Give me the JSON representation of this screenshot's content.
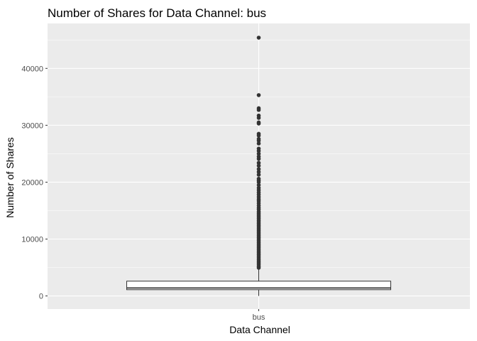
{
  "chart_data": {
    "type": "boxplot",
    "title": "Number of Shares for Data Channel: bus",
    "xlabel": "Data Channel",
    "ylabel": "Number of Shares",
    "categories": [
      "bus"
    ],
    "ylim": [
      -2300,
      47900
    ],
    "yticks": [
      0,
      10000,
      20000,
      30000,
      40000
    ],
    "ytick_labels": [
      "0",
      "10000",
      "20000",
      "30000",
      "40000"
    ],
    "grid": true,
    "background": "#ebebeb",
    "grid_color": "#ffffff",
    "point_color": "#333333",
    "box": {
      "category": "bus",
      "min": 0,
      "q1": 1100,
      "median": 1400,
      "q3": 2600,
      "whisker_high": 4850
    },
    "outliers": [
      45400,
      35300,
      33000,
      32700,
      31700,
      31300,
      30500,
      30300,
      28500,
      28200,
      27600,
      27300,
      26800,
      25900,
      25500,
      25000,
      24500,
      24100,
      23400,
      22900,
      22300,
      21800,
      21300,
      20600,
      20300,
      20000,
      19500,
      19000,
      18600,
      18200,
      17800,
      17400,
      17000,
      16700,
      16300,
      15900,
      15500,
      15200,
      14800,
      14500,
      14200,
      13900,
      13600,
      13300,
      13000,
      12700,
      12400,
      12100,
      11800,
      11500,
      11200,
      10900,
      10600,
      10300,
      10000,
      9700,
      9400,
      9100,
      8800,
      8500,
      8200,
      7900,
      7600,
      7300,
      7000,
      6700,
      6400,
      6100,
      5800,
      5500,
      5200,
      4950
    ]
  }
}
